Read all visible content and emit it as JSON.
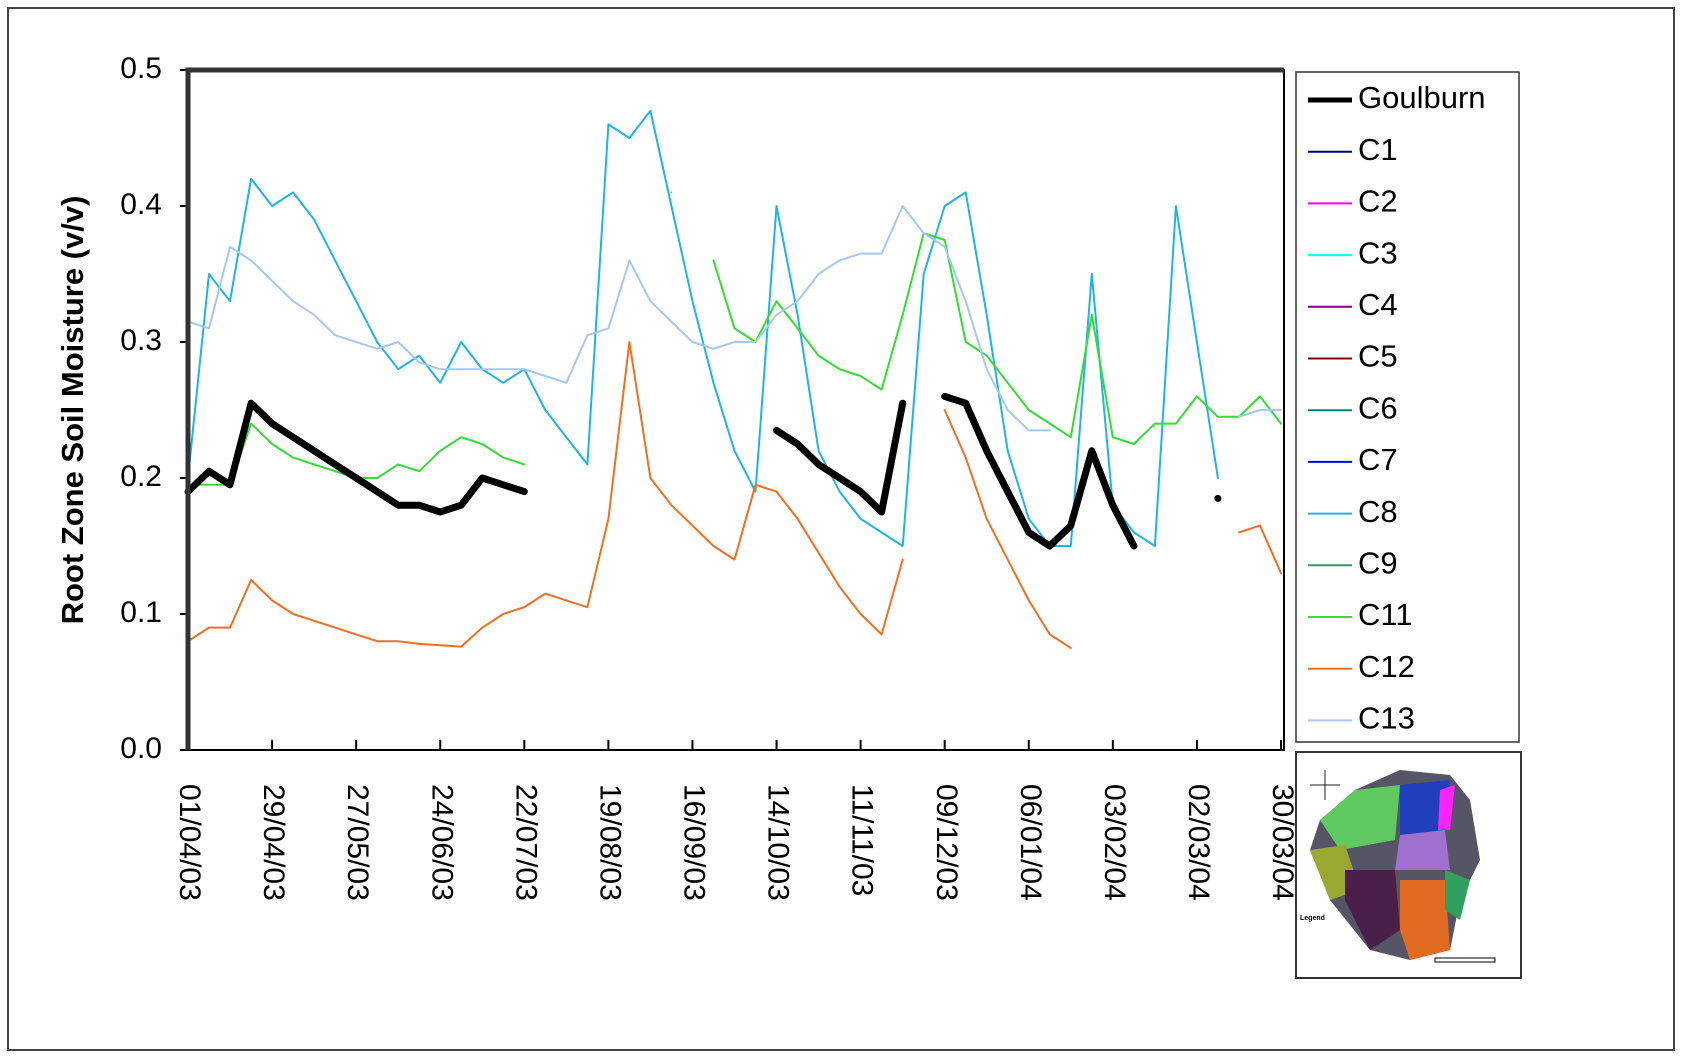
{
  "chart_data": {
    "type": "line",
    "y_label": "Root Zone Soil Moisture (v/v)",
    "x": [
      "01/04/03",
      "08/04/03",
      "15/04/03",
      "22/04/03",
      "29/04/03",
      "06/05/03",
      "13/05/03",
      "20/05/03",
      "27/05/03",
      "03/06/03",
      "10/06/03",
      "17/06/03",
      "24/06/03",
      "01/07/03",
      "08/07/03",
      "15/07/03",
      "22/07/03",
      "29/07/03",
      "05/08/03",
      "12/08/03",
      "19/08/03",
      "26/08/03",
      "02/09/03",
      "09/09/03",
      "16/09/03",
      "23/09/03",
      "30/09/03",
      "07/10/03",
      "14/10/03",
      "21/10/03",
      "28/10/03",
      "04/11/03",
      "11/11/03",
      "18/11/03",
      "25/11/03",
      "02/12/03",
      "09/12/03",
      "16/12/03",
      "23/12/03",
      "30/12/03",
      "06/01/04",
      "13/01/04",
      "20/01/04",
      "27/01/04",
      "03/02/04",
      "10/02/04",
      "17/02/04",
      "24/02/04",
      "02/03/04",
      "09/03/04",
      "16/03/04",
      "23/03/04",
      "30/03/04"
    ],
    "xlim": [
      "01/04/03",
      "31/03/04"
    ],
    "xticks": [
      "01/04/03",
      "29/04/03",
      "27/05/03",
      "24/06/03",
      "22/07/03",
      "19/08/03",
      "16/09/03",
      "14/10/03",
      "11/11/03",
      "09/12/03",
      "06/01/04",
      "03/02/04",
      "02/03/04",
      "30/03/04"
    ],
    "ylim": [
      0,
      0.5
    ],
    "yticks": [
      {
        "value": 0,
        "label": "0.0"
      },
      0.1,
      0.2,
      0.3,
      0.4,
      0.5
    ],
    "legend": "right",
    "series": [
      {
        "name": "Goulburn",
        "color": "#000000",
        "values": [
          0.19,
          0.205,
          0.195,
          0.255,
          0.24,
          0.23,
          0.22,
          0.21,
          0.2,
          0.19,
          0.18,
          0.18,
          0.175,
          0.18,
          0.2,
          0.195,
          0.19,
          null,
          null,
          null,
          null,
          null,
          null,
          null,
          null,
          null,
          null,
          null,
          0.235,
          0.225,
          0.21,
          0.2,
          0.19,
          0.175,
          0.255,
          null,
          0.26,
          0.255,
          0.22,
          0.19,
          0.16,
          0.15,
          0.165,
          0.22,
          0.18,
          0.15,
          null,
          null,
          null,
          0.185,
          null,
          null,
          null
        ]
      },
      {
        "name": "C1",
        "color": "#000080",
        "values": [
          null,
          null,
          null,
          null,
          null,
          null,
          null,
          null,
          null,
          null,
          null,
          null,
          null,
          null,
          null,
          null,
          null,
          null,
          null,
          null,
          null,
          null,
          null,
          null,
          null,
          null,
          null,
          null,
          null,
          null,
          null,
          null,
          null,
          null,
          null,
          null,
          null,
          null,
          null,
          null,
          null,
          null,
          null,
          null,
          null,
          null,
          null,
          null,
          null,
          null,
          null,
          null,
          null
        ]
      },
      {
        "name": "C2",
        "color": "#ff00ff",
        "values": [
          null,
          null,
          null,
          null,
          null,
          null,
          null,
          null,
          null,
          null,
          null,
          null,
          null,
          null,
          null,
          null,
          null,
          null,
          null,
          null,
          null,
          null,
          null,
          null,
          null,
          null,
          null,
          null,
          null,
          null,
          null,
          null,
          null,
          null,
          null,
          null,
          null,
          null,
          null,
          null,
          null,
          null,
          null,
          null,
          null,
          null,
          null,
          null,
          null,
          null,
          null,
          null,
          null
        ]
      },
      {
        "name": "C3",
        "color": "#00ffff",
        "values": [
          null,
          null,
          null,
          null,
          null,
          null,
          null,
          null,
          null,
          null,
          null,
          null,
          null,
          null,
          null,
          null,
          null,
          null,
          null,
          null,
          null,
          null,
          null,
          null,
          null,
          null,
          null,
          null,
          null,
          null,
          null,
          null,
          null,
          null,
          null,
          null,
          null,
          null,
          null,
          null,
          null,
          null,
          null,
          null,
          null,
          null,
          null,
          null,
          null,
          null,
          null,
          null,
          null
        ]
      },
      {
        "name": "C4",
        "color": "#800080",
        "values": [
          null,
          null,
          null,
          null,
          null,
          null,
          null,
          null,
          null,
          null,
          null,
          null,
          null,
          null,
          null,
          null,
          null,
          null,
          null,
          null,
          null,
          null,
          null,
          null,
          null,
          null,
          null,
          null,
          null,
          null,
          null,
          null,
          null,
          null,
          null,
          null,
          null,
          null,
          null,
          null,
          null,
          null,
          null,
          null,
          null,
          null,
          null,
          null,
          null,
          null,
          null,
          null,
          null
        ]
      },
      {
        "name": "C5",
        "color": "#800000",
        "values": [
          null,
          null,
          null,
          null,
          null,
          null,
          null,
          null,
          null,
          null,
          null,
          null,
          null,
          null,
          null,
          null,
          null,
          null,
          null,
          null,
          null,
          null,
          null,
          null,
          null,
          null,
          null,
          null,
          null,
          null,
          null,
          null,
          null,
          null,
          null,
          null,
          null,
          null,
          null,
          null,
          null,
          null,
          null,
          null,
          null,
          null,
          null,
          null,
          null,
          null,
          null,
          null,
          null
        ]
      },
      {
        "name": "C6",
        "color": "#008080",
        "values": [
          null,
          null,
          null,
          null,
          null,
          null,
          null,
          null,
          null,
          null,
          null,
          null,
          null,
          null,
          null,
          null,
          null,
          null,
          null,
          null,
          null,
          null,
          null,
          null,
          null,
          null,
          null,
          null,
          null,
          null,
          null,
          null,
          null,
          null,
          null,
          null,
          null,
          null,
          null,
          null,
          null,
          null,
          null,
          null,
          null,
          null,
          null,
          null,
          null,
          null,
          null,
          null,
          null
        ]
      },
      {
        "name": "C7",
        "color": "#0000ff",
        "values": [
          null,
          null,
          null,
          null,
          null,
          null,
          null,
          null,
          null,
          null,
          null,
          null,
          null,
          null,
          null,
          null,
          null,
          null,
          null,
          null,
          null,
          null,
          null,
          null,
          null,
          null,
          null,
          null,
          null,
          null,
          null,
          null,
          null,
          null,
          null,
          null,
          null,
          null,
          null,
          null,
          null,
          null,
          null,
          null,
          null,
          null,
          null,
          null,
          null,
          null,
          null,
          null,
          null
        ]
      },
      {
        "name": "C8",
        "color": "#1eb4e6",
        "values": [
          0.2,
          0.35,
          0.33,
          0.42,
          0.4,
          0.41,
          0.39,
          0.36,
          0.33,
          0.3,
          0.28,
          0.29,
          0.27,
          0.3,
          0.28,
          0.27,
          0.28,
          0.25,
          0.23,
          0.21,
          0.46,
          0.45,
          0.47,
          0.4,
          0.33,
          0.27,
          0.22,
          0.19,
          0.4,
          0.32,
          0.22,
          0.19,
          0.17,
          0.16,
          0.15,
          0.35,
          0.4,
          0.41,
          0.32,
          0.22,
          0.17,
          0.15,
          0.15,
          0.35,
          0.18,
          0.16,
          0.15,
          0.4,
          0.3,
          0.2,
          null,
          null,
          null
        ]
      },
      {
        "name": "C9",
        "color": "#339966",
        "values": [
          null,
          null,
          null,
          null,
          null,
          null,
          null,
          null,
          null,
          null,
          null,
          null,
          null,
          null,
          null,
          null,
          null,
          null,
          null,
          null,
          null,
          null,
          null,
          null,
          null,
          null,
          null,
          null,
          null,
          null,
          null,
          null,
          null,
          null,
          null,
          null,
          null,
          null,
          null,
          null,
          null,
          null,
          null,
          null,
          null,
          null,
          null,
          null,
          null,
          null,
          null,
          null,
          null
        ]
      },
      {
        "name": "C11",
        "color": "#33dd33",
        "values": [
          0.195,
          0.195,
          0.195,
          0.24,
          0.225,
          0.215,
          0.21,
          0.205,
          0.2,
          0.2,
          0.21,
          0.205,
          0.22,
          0.23,
          0.225,
          0.215,
          0.21,
          null,
          null,
          null,
          null,
          null,
          null,
          0.41,
          null,
          0.36,
          0.31,
          0.3,
          0.33,
          0.31,
          0.29,
          0.28,
          0.275,
          0.265,
          0.32,
          0.38,
          0.375,
          0.3,
          0.29,
          0.27,
          0.25,
          0.24,
          0.23,
          0.32,
          0.23,
          0.225,
          0.24,
          0.24,
          0.26,
          0.245,
          0.245,
          0.26,
          0.24
        ]
      },
      {
        "name": "C12",
        "color": "#f07020",
        "values": [
          0.08,
          0.09,
          0.09,
          0.125,
          0.11,
          0.1,
          0.095,
          0.09,
          0.085,
          0.08,
          0.08,
          0.078,
          0.077,
          0.076,
          0.09,
          0.1,
          0.105,
          0.115,
          0.11,
          0.105,
          0.17,
          0.3,
          0.2,
          0.18,
          0.165,
          0.15,
          0.14,
          0.195,
          0.19,
          0.17,
          0.145,
          0.12,
          0.1,
          0.085,
          0.14,
          null,
          0.25,
          0.215,
          0.17,
          0.14,
          0.11,
          0.085,
          0.075,
          null,
          null,
          null,
          null,
          null,
          null,
          null,
          0.16,
          0.165,
          0.13
        ]
      },
      {
        "name": "C13",
        "color": "#a6c8f0",
        "values": [
          0.315,
          0.31,
          0.37,
          0.36,
          0.345,
          0.33,
          0.32,
          0.305,
          0.3,
          0.295,
          0.3,
          0.285,
          0.28,
          0.28,
          0.28,
          0.28,
          0.28,
          0.275,
          0.27,
          0.305,
          0.31,
          0.36,
          0.33,
          0.315,
          0.3,
          0.295,
          0.3,
          0.3,
          0.32,
          0.33,
          0.35,
          0.36,
          0.365,
          0.365,
          0.4,
          0.38,
          0.37,
          0.33,
          0.28,
          0.25,
          0.235,
          0.235,
          null,
          null,
          null,
          null,
          null,
          null,
          null,
          null,
          0.245,
          0.25,
          0.25
        ]
      }
    ]
  },
  "map_inset": {
    "legend_label": "Legend"
  }
}
